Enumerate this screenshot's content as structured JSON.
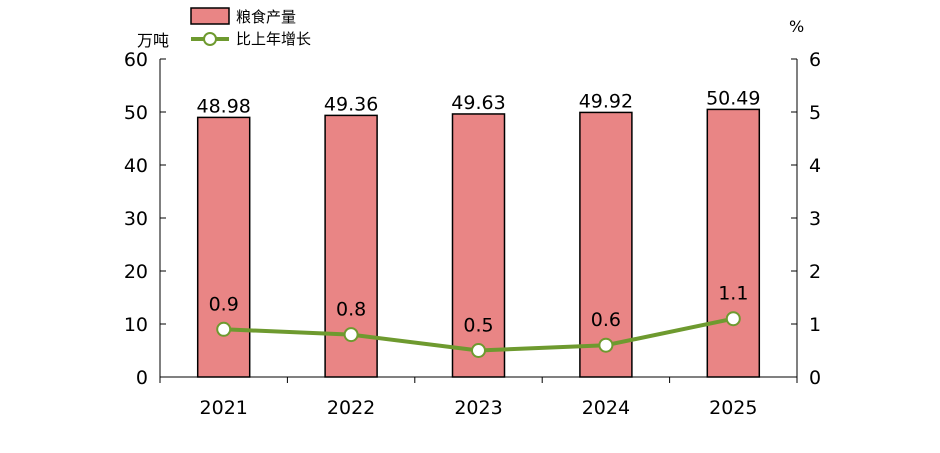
{
  "chart_data": {
    "type": "bar",
    "categories": [
      "2021",
      "2022",
      "2023",
      "2024",
      "2025"
    ],
    "series": [
      {
        "name": "粮食产量",
        "type": "bar",
        "axis": "left",
        "values": [
          48.98,
          49.36,
          49.63,
          49.92,
          50.49
        ],
        "color": "#E98585"
      },
      {
        "name": "比上年增长",
        "type": "line",
        "axis": "right",
        "values": [
          0.9,
          0.8,
          0.5,
          0.6,
          1.1
        ],
        "color": "#6E9A2F"
      }
    ],
    "y_left": {
      "label": "万吨",
      "ylim": [
        0,
        60
      ],
      "ticks": [
        "0",
        "10",
        "20",
        "30",
        "40",
        "50",
        "60"
      ]
    },
    "y_right": {
      "label": "%",
      "ylim": [
        0,
        6
      ],
      "ticks": [
        "0",
        "1",
        "2",
        "3",
        "4",
        "5",
        "6"
      ]
    },
    "bar_labels": [
      "48.98",
      "49.36",
      "49.63",
      "49.92",
      "50.49"
    ],
    "line_labels": [
      "0.9",
      "0.8",
      "0.5",
      "0.6",
      "1.1"
    ],
    "legend": {
      "placement": "top-left",
      "entries": [
        "粮食产量",
        "比上年增长"
      ]
    },
    "grid": false,
    "colors": {
      "bar_fill": "#E98585",
      "bar_stroke": "#000000",
      "line": "#6E9A2F",
      "marker_fill": "#ffffff"
    }
  }
}
